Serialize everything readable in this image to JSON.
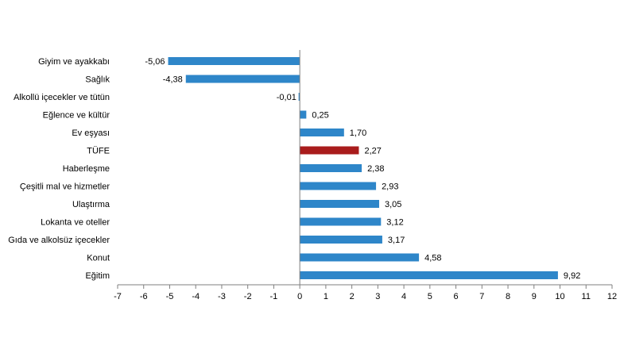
{
  "chart_data": {
    "type": "bar",
    "orientation": "horizontal",
    "categories": [
      "Giyim ve ayakkabı",
      "Sağlık",
      "Alkollü içecekler ve tütün",
      "Eğlence ve kültür",
      "Ev eşyası",
      "TÜFE",
      "Haberleşme",
      "Çeşitli mal ve hizmetler",
      "Ulaştırma",
      "Lokanta ve oteller",
      "Gıda ve alkolsüz içecekler",
      "Konut",
      "Eğitim"
    ],
    "values": [
      -5.06,
      -4.38,
      -0.01,
      0.25,
      1.7,
      2.27,
      2.38,
      2.93,
      3.05,
      3.12,
      3.17,
      4.58,
      9.92
    ],
    "value_labels": [
      "-5,06",
      "-4,38",
      "-0,01",
      "0,25",
      "1,70",
      "2,27",
      "2,38",
      "2,93",
      "3,05",
      "3,12",
      "3,17",
      "4,58",
      "9,92"
    ],
    "highlight_category": "TÜFE",
    "xlim": [
      -7,
      12
    ],
    "xticks": [
      -7,
      -6,
      -5,
      -4,
      -3,
      -2,
      -1,
      0,
      1,
      2,
      3,
      4,
      5,
      6,
      7,
      8,
      9,
      10,
      11,
      12
    ],
    "grid": false,
    "colors": {
      "bar": "#2e86c9",
      "highlight": "#a91c1c",
      "axis": "#7f7f7f",
      "text": "#000000"
    }
  }
}
